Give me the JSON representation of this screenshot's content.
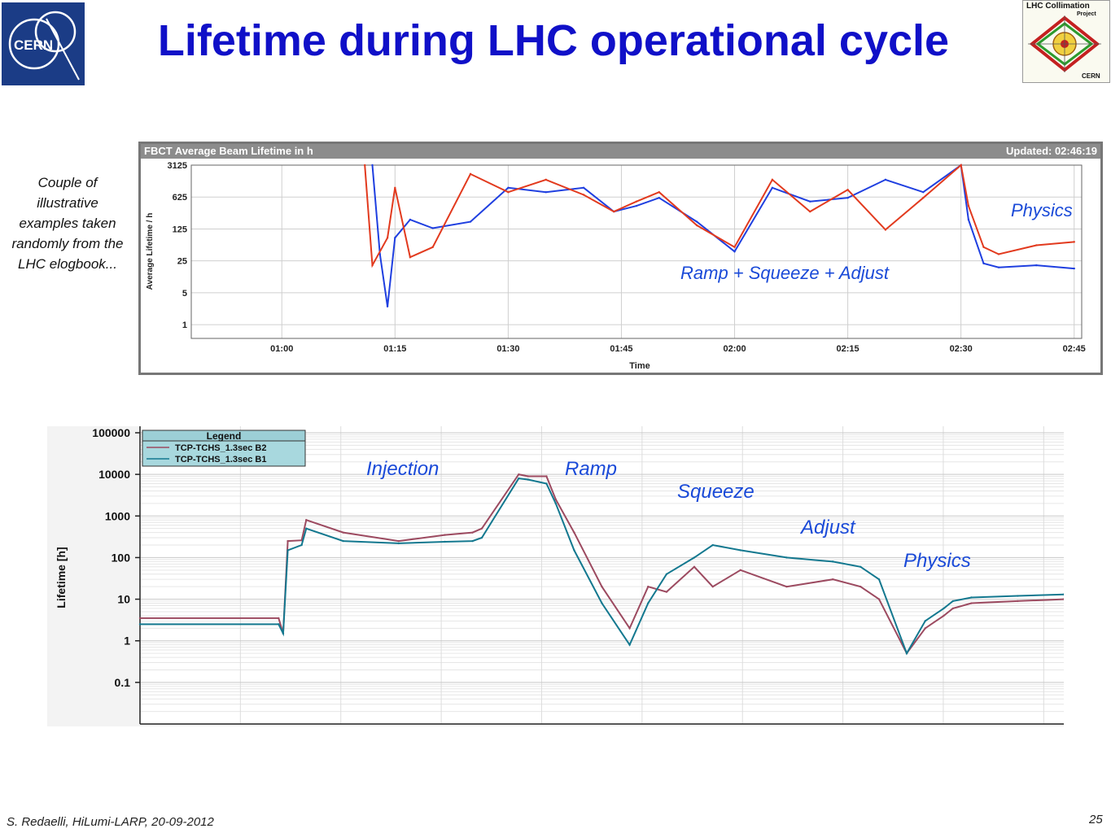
{
  "header": {
    "title": "Lifetime during LHC operational cycle",
    "cern_logo_text": "CERN",
    "collimation_logo": {
      "line1": "LHC Collimation",
      "line2": "Project",
      "line3": "CERN"
    }
  },
  "note": "Couple of illustrative examples taken randomly from the LHC elogbook...",
  "footer": {
    "author": "S. Redaelli, HiLumi-LARP, 20-09-2012",
    "page": "25"
  },
  "colors": {
    "title": "#1010c8",
    "annotation": "#1a4ad8",
    "fbct_b1": "#1f3fe0",
    "fbct_b2": "#e23a1e",
    "ts_b1": "#13788f",
    "ts_b2": "#9c4a60"
  },
  "chart_data": [
    {
      "type": "line",
      "title": "FBCT Average Beam Lifetime in h",
      "status": "Updated: 02:46:19",
      "xlabel": "Time",
      "ylabel": "Average Lifetime / h",
      "yscale": "log",
      "yticks": [
        "3125",
        "625",
        "125",
        "25",
        "5",
        "1"
      ],
      "xticks": [
        "01:00",
        "01:15",
        "01:30",
        "01:45",
        "02:00",
        "02:15",
        "02:30",
        "02:45"
      ],
      "xlim": [
        "00:48",
        "02:46"
      ],
      "ylim": [
        0.5,
        3125
      ],
      "grid": true,
      "annotations": [
        "Ramp + Squeeze + Adjust",
        "Physics"
      ],
      "series": [
        {
          "color": "blue",
          "x": [
            "01:12",
            "01:13",
            "01:14",
            "01:15",
            "01:17",
            "01:20",
            "01:25",
            "01:30",
            "01:35",
            "01:40",
            "01:44",
            "01:47",
            "01:50",
            "01:55",
            "02:00",
            "02:05",
            "02:10",
            "02:15",
            "02:20",
            "02:25",
            "02:30",
            "02:31",
            "02:33",
            "02:35",
            "02:40",
            "02:45"
          ],
          "values": [
            3125,
            35,
            2.5,
            80,
            200,
            130,
            180,
            1000,
            800,
            1000,
            300,
            400,
            600,
            180,
            40,
            1000,
            500,
            600,
            1500,
            800,
            3125,
            200,
            22,
            18,
            20,
            17
          ]
        },
        {
          "color": "red",
          "x": [
            "01:11",
            "01:12",
            "01:14",
            "01:15",
            "01:17",
            "01:20",
            "01:25",
            "01:30",
            "01:35",
            "01:40",
            "01:44",
            "01:47",
            "01:50",
            "01:55",
            "02:00",
            "02:05",
            "02:10",
            "02:15",
            "02:20",
            "02:25",
            "02:30",
            "02:31",
            "02:33",
            "02:35",
            "02:40",
            "02:45"
          ],
          "values": [
            3125,
            20,
            80,
            1000,
            30,
            50,
            2000,
            800,
            1500,
            700,
            300,
            500,
            800,
            150,
            50,
            1500,
            300,
            900,
            120,
            600,
            3125,
            400,
            50,
            35,
            55,
            65
          ]
        }
      ]
    },
    {
      "type": "line",
      "title": "",
      "ylabel": "Lifetime [h]",
      "yscale": "log",
      "yticks": [
        "100000",
        "10000",
        "1000",
        "100",
        "10",
        "1",
        "0.1"
      ],
      "ylim": [
        0.01,
        100000
      ],
      "grid": true,
      "legend": {
        "title": "Legend",
        "position": "top-left",
        "entries": [
          "TCP-TCHS_1.3sec B2",
          "TCP-TCHS_1.3sec B1"
        ]
      },
      "annotations": [
        "Injection",
        "Ramp",
        "Squeeze",
        "Adjust",
        "Physics"
      ],
      "series": [
        {
          "name": "TCP-TCHS_1.3sec B2",
          "color": "mauve",
          "x": [
            0,
            0.15,
            0.155,
            0.16,
            0.175,
            0.18,
            0.22,
            0.28,
            0.33,
            0.36,
            0.37,
            0.41,
            0.42,
            0.44,
            0.45,
            0.47,
            0.5,
            0.53,
            0.55,
            0.57,
            0.6,
            0.62,
            0.65,
            0.7,
            0.75,
            0.78,
            0.8,
            0.83,
            0.85,
            0.87,
            0.88,
            0.9,
            0.95,
            1.0
          ],
          "values": [
            3.5,
            3.5,
            1.5,
            250,
            260,
            800,
            400,
            250,
            350,
            400,
            500,
            10000,
            9000,
            9000,
            2500,
            400,
            20,
            2,
            20,
            15,
            60,
            20,
            50,
            20,
            30,
            20,
            10,
            0.5,
            2,
            4,
            6,
            8,
            9,
            10
          ]
        },
        {
          "name": "TCP-TCHS_1.3sec B1",
          "color": "teal",
          "x": [
            0,
            0.15,
            0.155,
            0.16,
            0.175,
            0.18,
            0.22,
            0.28,
            0.33,
            0.36,
            0.37,
            0.41,
            0.42,
            0.44,
            0.45,
            0.47,
            0.5,
            0.53,
            0.55,
            0.57,
            0.6,
            0.62,
            0.65,
            0.7,
            0.75,
            0.78,
            0.8,
            0.83,
            0.85,
            0.87,
            0.88,
            0.9,
            0.95,
            1.0
          ],
          "values": [
            2.5,
            2.5,
            1.5,
            150,
            200,
            500,
            250,
            220,
            240,
            250,
            300,
            8000,
            7500,
            6000,
            2000,
            150,
            8,
            0.8,
            8,
            40,
            100,
            200,
            150,
            100,
            80,
            60,
            30,
            0.5,
            3,
            6,
            9,
            11,
            12,
            13
          ]
        }
      ]
    }
  ]
}
